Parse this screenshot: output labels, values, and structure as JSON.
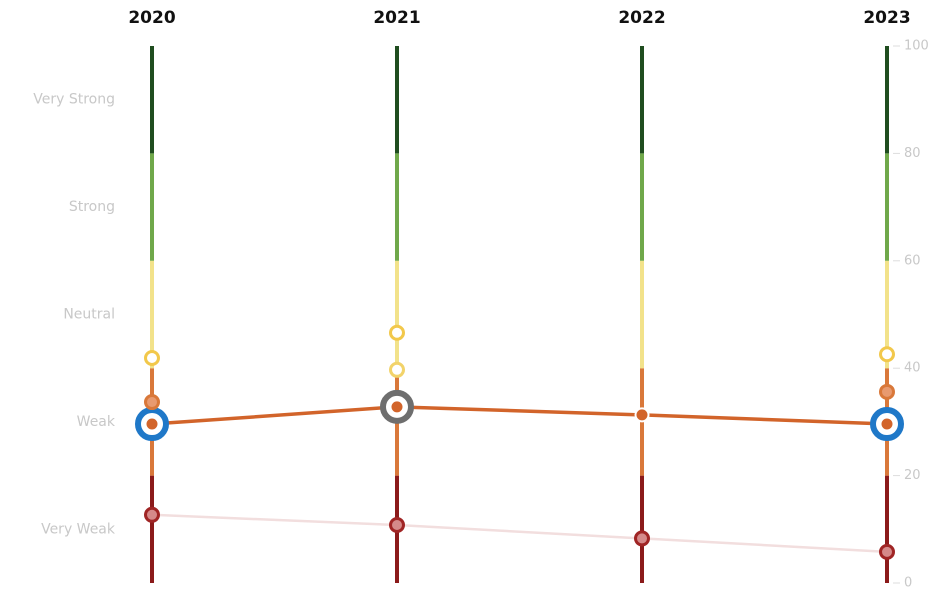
{
  "chart_data": {
    "type": "line",
    "categories": [
      "2020",
      "2021",
      "2022",
      "2023"
    ],
    "ylim": [
      0,
      100
    ],
    "y2lim": [
      0,
      100
    ],
    "y2ticks": [
      0,
      20,
      40,
      60,
      80,
      100
    ],
    "bands": [
      {
        "label": "Very Weak",
        "range": [
          0,
          20
        ],
        "color": "#8b1a1a"
      },
      {
        "label": "Weak",
        "range": [
          20,
          40
        ],
        "color": "#d9783a"
      },
      {
        "label": "Neutral",
        "range": [
          40,
          60
        ],
        "color": "#f2e28a"
      },
      {
        "label": "Strong",
        "range": [
          60,
          80
        ],
        "color": "#6fa84a"
      },
      {
        "label": "Very Strong",
        "range": [
          80,
          100
        ],
        "color": "#1f4d1f"
      }
    ],
    "series": [
      {
        "color": "#f2c84b",
        "fill": "#ffffff",
        "line": false,
        "values": [
          41.9,
          46.6,
          null,
          42.6
        ]
      },
      {
        "color": "#f2d36a",
        "fill": "#ffffff",
        "line": false,
        "values": [
          null,
          39.7,
          null,
          null
        ]
      },
      {
        "color": "#d9783a",
        "fill": "#e89a70",
        "line": false,
        "values": [
          33.7,
          null,
          null,
          35.6
        ]
      },
      {
        "color": "#a02525",
        "fill": "#d58a8a",
        "line": "#f2dede",
        "values": [
          12.7,
          10.8,
          8.3,
          5.8
        ]
      },
      {
        "color": "#d2642a",
        "fill": "#d2642a",
        "line": "#d2642a",
        "values": [
          29.6,
          32.8,
          31.3,
          29.6
        ]
      }
    ],
    "highlight_colors": [
      "#1f78c8",
      "#6e6e6e",
      null,
      "#1f78c8"
    ]
  }
}
